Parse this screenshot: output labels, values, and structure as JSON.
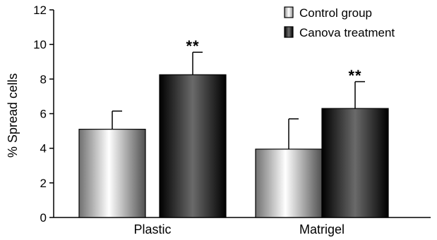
{
  "chart_data": {
    "type": "bar",
    "ylabel": "% Spread cells",
    "xlabel": "",
    "ylim": [
      0,
      12
    ],
    "yticks": [
      0,
      2,
      4,
      6,
      8,
      10,
      12
    ],
    "categories": [
      "Plastic",
      "Matrigel"
    ],
    "series": [
      {
        "name": "Control group",
        "values": [
          5.1,
          3.95
        ],
        "errors": [
          1.05,
          1.75
        ],
        "fill": "gradient-white-grey"
      },
      {
        "name": "Canova treatment",
        "values": [
          8.25,
          6.3
        ],
        "errors": [
          1.3,
          1.55
        ],
        "fill": "gradient-black-grey"
      }
    ],
    "annotations": [
      {
        "category": "Plastic",
        "series": "Canova treatment",
        "text": "**"
      },
      {
        "category": "Matrigel",
        "series": "Canova treatment",
        "text": "**"
      }
    ],
    "legend_position": "top-right",
    "grid": false,
    "colors": {
      "axis": "#000000",
      "control_light": "#ffffff",
      "control_dark": "#707070",
      "treatment_light": "#6a6a6a",
      "treatment_dark": "#000000"
    }
  }
}
